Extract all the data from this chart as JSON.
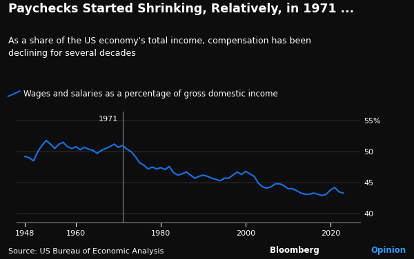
{
  "title": "Paychecks Started Shrinking, Relatively, in 1971 ...",
  "subtitle": "As a share of the US economy's total income, compensation has been\ndeclining for several decades",
  "legend_label": "Wages and salaries as a percentage of gross domestic income",
  "source": "Source: US Bureau of Economic Analysis",
  "watermark_black": "Bloomberg ",
  "watermark_blue": "Opinion",
  "watermark_color": "#3399ff",
  "annotation_year": "1971",
  "vline_x": 1971,
  "background_color": "#0d0d0d",
  "text_color": "#ffffff",
  "line_color": "#1a6edb",
  "grid_color": "#3a3a3a",
  "axis_color": "#888888",
  "ylim": [
    38.5,
    56.5
  ],
  "xlim": [
    1946,
    2027
  ],
  "yticks": [
    40,
    45,
    50,
    55
  ],
  "ytick_labels": [
    "40",
    "45",
    "50",
    "55%"
  ],
  "xticks": [
    1948,
    1960,
    1980,
    2000,
    2020
  ],
  "title_fontsize": 12.5,
  "subtitle_fontsize": 9.0,
  "legend_fontsize": 8.5,
  "source_fontsize": 8,
  "years": [
    1948,
    1949,
    1950,
    1951,
    1952,
    1953,
    1954,
    1955,
    1956,
    1957,
    1958,
    1959,
    1960,
    1961,
    1962,
    1963,
    1964,
    1965,
    1966,
    1967,
    1968,
    1969,
    1970,
    1971,
    1972,
    1973,
    1974,
    1975,
    1976,
    1977,
    1978,
    1979,
    1980,
    1981,
    1982,
    1983,
    1984,
    1985,
    1986,
    1987,
    1988,
    1989,
    1990,
    1991,
    1992,
    1993,
    1994,
    1995,
    1996,
    1997,
    1998,
    1999,
    2000,
    2001,
    2002,
    2003,
    2004,
    2005,
    2006,
    2007,
    2008,
    2009,
    2010,
    2011,
    2012,
    2013,
    2014,
    2015,
    2016,
    2017,
    2018,
    2019,
    2020,
    2021,
    2022,
    2023
  ],
  "values": [
    49.2,
    49.0,
    48.5,
    50.0,
    51.0,
    51.8,
    51.2,
    50.5,
    51.2,
    51.5,
    50.8,
    50.5,
    50.8,
    50.3,
    50.7,
    50.4,
    50.2,
    49.7,
    50.2,
    50.5,
    50.8,
    51.2,
    50.7,
    51.0,
    50.4,
    50.0,
    49.2,
    48.2,
    47.8,
    47.2,
    47.5,
    47.2,
    47.4,
    47.1,
    47.6,
    46.6,
    46.2,
    46.4,
    46.7,
    46.2,
    45.7,
    46.0,
    46.2,
    46.0,
    45.7,
    45.5,
    45.3,
    45.7,
    45.7,
    46.2,
    46.7,
    46.3,
    46.8,
    46.4,
    46.0,
    44.9,
    44.3,
    44.1,
    44.3,
    44.8,
    44.8,
    44.5,
    44.0,
    44.0,
    43.7,
    43.3,
    43.1,
    43.1,
    43.3,
    43.1,
    42.9,
    43.1,
    43.8,
    44.2,
    43.5,
    43.3
  ]
}
